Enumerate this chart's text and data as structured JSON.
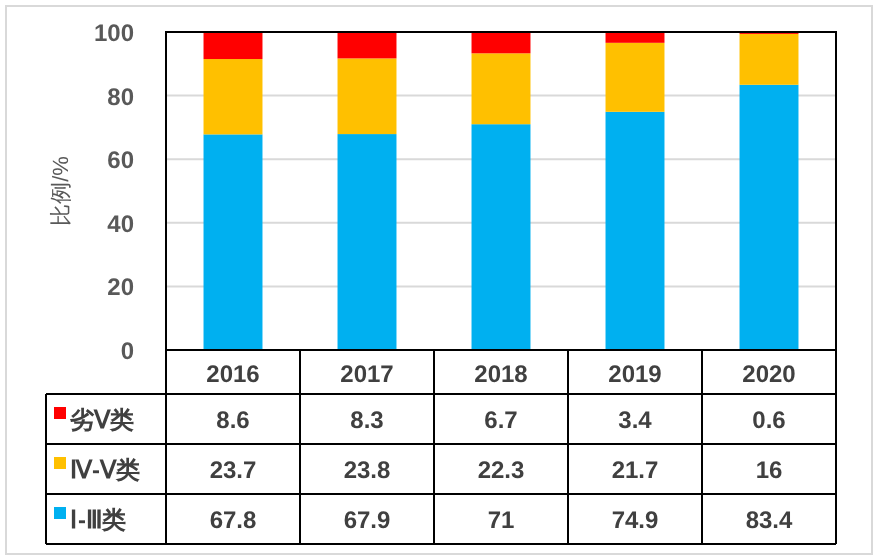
{
  "chart_data": {
    "type": "bar",
    "stacked": true,
    "ylabel": "比例/%",
    "categories": [
      "2016",
      "2017",
      "2018",
      "2019",
      "2020"
    ],
    "series": [
      {
        "name": "Ⅰ-Ⅲ类",
        "color": "#00b0f0",
        "values": [
          67.8,
          67.9,
          71,
          74.9,
          83.4
        ]
      },
      {
        "name": "Ⅳ-Ⅴ类",
        "color": "#ffc000",
        "values": [
          23.7,
          23.8,
          22.3,
          21.7,
          16
        ]
      },
      {
        "name": "劣Ⅴ类",
        "color": "#ff0000",
        "values": [
          8.6,
          8.3,
          6.7,
          3.4,
          0.6
        ]
      }
    ],
    "ylim": [
      0,
      100
    ],
    "yticks": [
      0,
      20,
      40,
      60,
      80,
      100
    ],
    "grid": "y",
    "legend": "bottom",
    "data_labels": true
  }
}
